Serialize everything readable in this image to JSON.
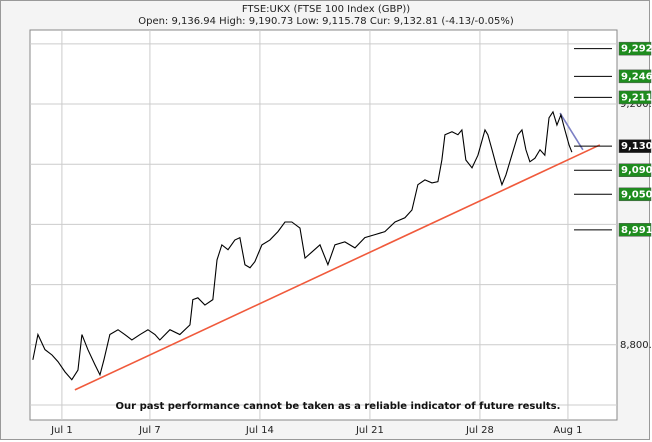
{
  "chart_data": {
    "type": "line",
    "title": "FTSE:UKX (FTSE 100 Index (GBP))",
    "subtitle": "Open: 9,136.94 High: 9,190.73 Low: 9,115.78 Cur: 9,132.81 (-4.13/-0.05%)",
    "annotation": "Our past performance cannot be taken as a reliable indicator of future results.",
    "xlim": [
      -1.45,
      25.23
    ],
    "xticks": [
      {
        "value": 0,
        "label": "Jul 1"
      },
      {
        "value": 4,
        "label": "Jul 7"
      },
      {
        "value": 9,
        "label": "Jul 14"
      },
      {
        "value": 14,
        "label": "Jul 21"
      },
      {
        "value": 19,
        "label": "Jul 28"
      },
      {
        "value": 23,
        "label": "Aug 1"
      }
    ],
    "ylim": [
      8675,
      9323
    ],
    "yticks": [
      {
        "value": 8700,
        "label": null
      },
      {
        "value": 8800,
        "label": "8,800."
      },
      {
        "value": 8900,
        "label": null
      },
      {
        "value": 9000,
        "label": null
      },
      {
        "value": 9100,
        "label": null
      },
      {
        "value": 9200,
        "label": "9,200."
      },
      {
        "value": 9300,
        "label": null
      }
    ],
    "grid": true,
    "series": [
      {
        "color": "#000000",
        "x": [
          -1.32,
          -1.09,
          -0.77,
          -0.45,
          -0.18,
          0.14,
          0.45,
          0.73,
          0.91,
          1.18,
          1.5,
          1.73,
          1.91,
          2.18,
          2.55,
          2.86,
          3.18,
          3.55,
          3.91,
          4.23,
          4.45,
          4.91,
          5.36,
          5.82,
          5.95,
          6.18,
          6.5,
          6.86,
          7.05,
          7.27,
          7.55,
          7.86,
          8.09,
          8.32,
          8.55,
          8.77,
          9.09,
          9.45,
          9.82,
          10.14,
          10.45,
          10.82,
          11.05,
          11.36,
          11.73,
          12.09,
          12.41,
          12.86,
          13.32,
          13.77,
          14.23,
          14.68,
          15.14,
          15.59,
          15.91,
          16.18,
          16.5,
          16.82,
          17.09,
          17.27,
          17.41,
          17.73,
          18.0,
          18.18,
          18.36,
          18.64,
          18.91,
          19.23,
          19.36,
          19.55,
          19.77,
          20.0,
          20.18,
          20.45,
          20.73,
          20.91,
          21.09,
          21.27,
          21.5,
          21.73,
          21.95,
          22.14,
          22.32,
          22.5,
          22.68,
          22.86,
          23.05,
          23.18
        ],
        "values": [
          8775,
          8817,
          8792,
          8783,
          8772,
          8755,
          8742,
          8758,
          8817,
          8792,
          8767,
          8750,
          8775,
          8817,
          8825,
          8817,
          8808,
          8817,
          8825,
          8817,
          8808,
          8825,
          8817,
          8833,
          8875,
          8878,
          8866,
          8875,
          8941,
          8966,
          8958,
          8974,
          8978,
          8933,
          8928,
          8938,
          8966,
          8974,
          8988,
          9004,
          9004,
          8994,
          8944,
          8954,
          8966,
          8933,
          8966,
          8971,
          8961,
          8978,
          8983,
          8988,
          9004,
          9011,
          9024,
          9066,
          9074,
          9069,
          9071,
          9107,
          9149,
          9154,
          9149,
          9157,
          9107,
          9094,
          9115,
          9157,
          9149,
          9124,
          9094,
          9066,
          9082,
          9115,
          9149,
          9157,
          9124,
          9104,
          9110,
          9124,
          9115,
          9177,
          9187,
          9165,
          9182,
          9157,
          9132,
          9120
        ]
      }
    ],
    "lines": [
      {
        "color": "#f05a3c",
        "x": [
          0.59,
          24.45
        ],
        "values": [
          8725,
          9132
        ]
      },
      {
        "color": "#7b7fc4",
        "x": [
          22.64,
          23.68
        ],
        "values": [
          9185,
          9124
        ]
      }
    ],
    "levels": [
      {
        "value": 9292,
        "label": "9,292.",
        "color": "#1e8c1e"
      },
      {
        "value": 9246,
        "label": "9,246.",
        "color": "#1e8c1e"
      },
      {
        "value": 9211,
        "label": "9,211.",
        "color": "#1e8c1e"
      },
      {
        "value": 9130,
        "label": "9,130.",
        "color": "#111111"
      },
      {
        "value": 9090,
        "label": "9,090.",
        "color": "#1e8c1e"
      },
      {
        "value": 9050,
        "label": "9,050.",
        "color": "#1e8c1e"
      },
      {
        "value": 8991,
        "label": "8,991.",
        "color": "#1e8c1e"
      }
    ]
  }
}
